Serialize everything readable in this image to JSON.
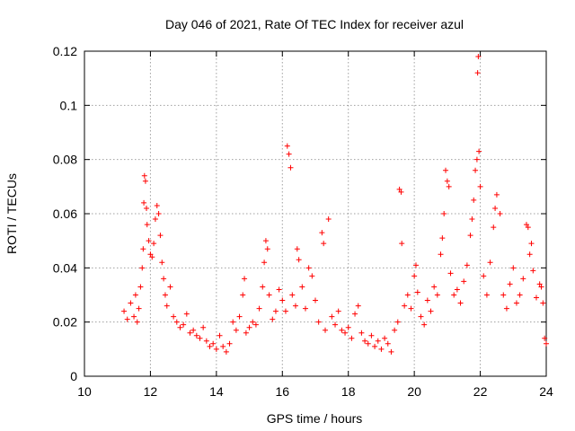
{
  "chart_data": {
    "type": "scatter",
    "title": "Day 046 of 2021, Rate Of TEC Index for receiver azul",
    "xlabel": "GPS time / hours",
    "ylabel": "ROTI / TECUs",
    "xlim": [
      10,
      24
    ],
    "ylim": [
      0,
      0.12
    ],
    "xticks": [
      10,
      12,
      14,
      16,
      18,
      20,
      22,
      24
    ],
    "yticks": [
      0,
      0.02,
      0.04,
      0.06,
      0.08,
      0.1,
      0.12
    ],
    "ytick_labels": [
      "0",
      "0.02",
      "0.04",
      "0.06",
      "0.08",
      "0.1",
      "0.12"
    ],
    "xtick_labels": [
      "10",
      "12",
      "14",
      "16",
      "18",
      "20",
      "22",
      "24"
    ],
    "grid": true,
    "marker": "+",
    "color": "#ff0000",
    "series": [
      {
        "points": [
          [
            11.2,
            0.024
          ],
          [
            11.3,
            0.021
          ],
          [
            11.4,
            0.027
          ],
          [
            11.5,
            0.022
          ],
          [
            11.55,
            0.03
          ],
          [
            11.6,
            0.02
          ],
          [
            11.65,
            0.025
          ],
          [
            11.7,
            0.033
          ],
          [
            11.75,
            0.04
          ],
          [
            11.78,
            0.047
          ],
          [
            11.8,
            0.064
          ],
          [
            11.82,
            0.074
          ],
          [
            11.85,
            0.072
          ],
          [
            11.88,
            0.062
          ],
          [
            11.9,
            0.056
          ],
          [
            11.95,
            0.05
          ],
          [
            12.0,
            0.045
          ],
          [
            12.05,
            0.044
          ],
          [
            12.1,
            0.049
          ],
          [
            12.15,
            0.058
          ],
          [
            12.2,
            0.063
          ],
          [
            12.25,
            0.06
          ],
          [
            12.3,
            0.052
          ],
          [
            12.35,
            0.042
          ],
          [
            12.4,
            0.036
          ],
          [
            12.45,
            0.03
          ],
          [
            12.5,
            0.026
          ],
          [
            12.6,
            0.033
          ],
          [
            12.7,
            0.022
          ],
          [
            12.8,
            0.02
          ],
          [
            12.9,
            0.018
          ],
          [
            13.0,
            0.019
          ],
          [
            13.1,
            0.023
          ],
          [
            13.2,
            0.016
          ],
          [
            13.3,
            0.017
          ],
          [
            13.4,
            0.015
          ],
          [
            13.5,
            0.014
          ],
          [
            13.6,
            0.018
          ],
          [
            13.7,
            0.013
          ],
          [
            13.8,
            0.011
          ],
          [
            13.9,
            0.012
          ],
          [
            14.0,
            0.01
          ],
          [
            14.1,
            0.015
          ],
          [
            14.2,
            0.011
          ],
          [
            14.3,
            0.009
          ],
          [
            14.4,
            0.012
          ],
          [
            14.5,
            0.02
          ],
          [
            14.6,
            0.017
          ],
          [
            14.7,
            0.022
          ],
          [
            14.8,
            0.03
          ],
          [
            14.85,
            0.036
          ],
          [
            14.9,
            0.016
          ],
          [
            15.0,
            0.018
          ],
          [
            15.1,
            0.02
          ],
          [
            15.2,
            0.019
          ],
          [
            15.3,
            0.025
          ],
          [
            15.4,
            0.033
          ],
          [
            15.45,
            0.042
          ],
          [
            15.5,
            0.05
          ],
          [
            15.55,
            0.047
          ],
          [
            15.6,
            0.03
          ],
          [
            15.7,
            0.021
          ],
          [
            15.8,
            0.024
          ],
          [
            15.9,
            0.032
          ],
          [
            16.0,
            0.028
          ],
          [
            16.1,
            0.024
          ],
          [
            16.15,
            0.085
          ],
          [
            16.2,
            0.082
          ],
          [
            16.25,
            0.077
          ],
          [
            16.3,
            0.03
          ],
          [
            16.4,
            0.026
          ],
          [
            16.45,
            0.047
          ],
          [
            16.5,
            0.043
          ],
          [
            16.6,
            0.033
          ],
          [
            16.7,
            0.025
          ],
          [
            16.8,
            0.04
          ],
          [
            16.9,
            0.037
          ],
          [
            17.0,
            0.028
          ],
          [
            17.1,
            0.02
          ],
          [
            17.2,
            0.053
          ],
          [
            17.25,
            0.049
          ],
          [
            17.3,
            0.017
          ],
          [
            17.4,
            0.058
          ],
          [
            17.5,
            0.022
          ],
          [
            17.6,
            0.019
          ],
          [
            17.7,
            0.024
          ],
          [
            17.8,
            0.017
          ],
          [
            17.9,
            0.016
          ],
          [
            18.0,
            0.018
          ],
          [
            18.1,
            0.014
          ],
          [
            18.2,
            0.023
          ],
          [
            18.3,
            0.026
          ],
          [
            18.4,
            0.016
          ],
          [
            18.5,
            0.013
          ],
          [
            18.6,
            0.012
          ],
          [
            18.7,
            0.015
          ],
          [
            18.8,
            0.011
          ],
          [
            18.9,
            0.013
          ],
          [
            19.0,
            0.01
          ],
          [
            19.1,
            0.014
          ],
          [
            19.2,
            0.012
          ],
          [
            19.3,
            0.009
          ],
          [
            19.4,
            0.017
          ],
          [
            19.5,
            0.02
          ],
          [
            19.55,
            0.069
          ],
          [
            19.6,
            0.068
          ],
          [
            19.62,
            0.049
          ],
          [
            19.7,
            0.026
          ],
          [
            19.8,
            0.03
          ],
          [
            19.9,
            0.025
          ],
          [
            20.0,
            0.037
          ],
          [
            20.05,
            0.041
          ],
          [
            20.1,
            0.031
          ],
          [
            20.2,
            0.022
          ],
          [
            20.3,
            0.019
          ],
          [
            20.4,
            0.028
          ],
          [
            20.5,
            0.024
          ],
          [
            20.6,
            0.033
          ],
          [
            20.7,
            0.03
          ],
          [
            20.8,
            0.045
          ],
          [
            20.85,
            0.051
          ],
          [
            20.9,
            0.06
          ],
          [
            20.95,
            0.076
          ],
          [
            21.0,
            0.072
          ],
          [
            21.05,
            0.07
          ],
          [
            21.1,
            0.038
          ],
          [
            21.2,
            0.03
          ],
          [
            21.3,
            0.032
          ],
          [
            21.4,
            0.027
          ],
          [
            21.5,
            0.035
          ],
          [
            21.6,
            0.041
          ],
          [
            21.7,
            0.052
          ],
          [
            21.75,
            0.058
          ],
          [
            21.8,
            0.065
          ],
          [
            21.85,
            0.076
          ],
          [
            21.9,
            0.08
          ],
          [
            21.92,
            0.112
          ],
          [
            21.94,
            0.118
          ],
          [
            21.96,
            0.083
          ],
          [
            22.0,
            0.07
          ],
          [
            22.1,
            0.037
          ],
          [
            22.2,
            0.03
          ],
          [
            22.3,
            0.042
          ],
          [
            22.4,
            0.055
          ],
          [
            22.45,
            0.062
          ],
          [
            22.5,
            0.067
          ],
          [
            22.6,
            0.06
          ],
          [
            22.7,
            0.03
          ],
          [
            22.8,
            0.025
          ],
          [
            22.9,
            0.034
          ],
          [
            23.0,
            0.04
          ],
          [
            23.1,
            0.027
          ],
          [
            23.2,
            0.03
          ],
          [
            23.3,
            0.036
          ],
          [
            23.4,
            0.056
          ],
          [
            23.45,
            0.055
          ],
          [
            23.5,
            0.045
          ],
          [
            23.55,
            0.049
          ],
          [
            23.6,
            0.039
          ],
          [
            23.7,
            0.029
          ],
          [
            23.8,
            0.034
          ],
          [
            23.85,
            0.033
          ],
          [
            23.9,
            0.027
          ],
          [
            23.95,
            0.014
          ],
          [
            24.0,
            0.012
          ]
        ]
      }
    ]
  }
}
